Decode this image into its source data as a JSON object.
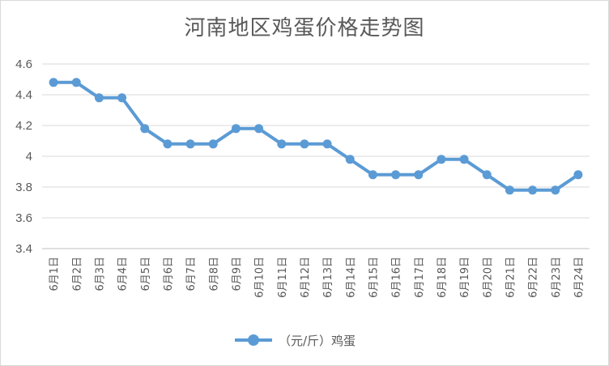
{
  "chart_data": {
    "type": "line",
    "title": "河南地区鸡蛋价格走势图",
    "categories": [
      "6月1日",
      "6月2日",
      "6月3日",
      "6月4日",
      "6月5日",
      "6月6日",
      "6月7日",
      "6月8日",
      "6月9日",
      "6月10日",
      "6月11日",
      "6月12日",
      "6月13日",
      "6月14日",
      "6月15日",
      "6月16日",
      "6月17日",
      "6月18日",
      "6月19日",
      "6月20日",
      "6月21日",
      "6月22日",
      "6月23日",
      "6月24日"
    ],
    "series": [
      {
        "name": "（元/斤）鸡蛋",
        "values": [
          4.48,
          4.48,
          4.38,
          4.38,
          4.18,
          4.08,
          4.08,
          4.08,
          4.18,
          4.18,
          4.08,
          4.08,
          4.08,
          3.98,
          3.88,
          3.88,
          3.88,
          3.98,
          3.98,
          3.88,
          3.78,
          3.78,
          3.78,
          3.88
        ]
      }
    ],
    "yticks": [
      "3.4",
      "3.6",
      "3.8",
      "4",
      "4.2",
      "4.4",
      "4.6"
    ],
    "ylim": [
      3.4,
      4.6
    ],
    "xlabel": "",
    "ylabel": "",
    "grid": true,
    "legend_position": "bottom",
    "colors": {
      "series": "#5b9bd5",
      "grid": "#d9d9d9",
      "text": "#595959"
    }
  }
}
